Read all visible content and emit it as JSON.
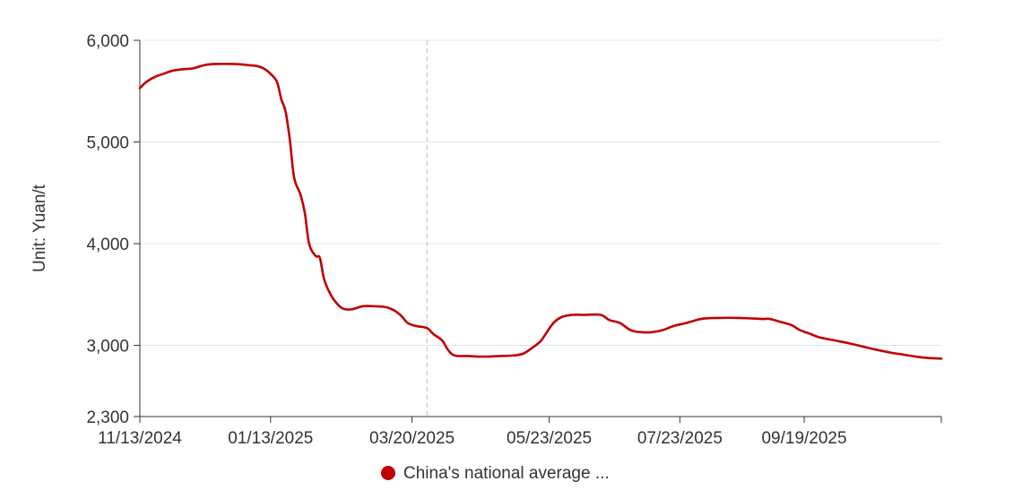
{
  "chart_data": {
    "type": "line",
    "ylabel": "Unit: Yuan/t",
    "ylim": [
      2300,
      6000
    ],
    "yticks": [
      {
        "value": 2300,
        "label": "2,300"
      },
      {
        "value": 3000,
        "label": "3,000"
      },
      {
        "value": 4000,
        "label": "4,000"
      },
      {
        "value": 5000,
        "label": "5,000"
      },
      {
        "value": 6000,
        "label": "6,000"
      }
    ],
    "xlim": [
      "2024-11-13",
      "2025-11-22"
    ],
    "xticks": [
      {
        "value": "2024-11-13",
        "label": "11/13/2024"
      },
      {
        "value": "2025-01-13",
        "label": "01/13/2025"
      },
      {
        "value": "2025-03-20",
        "label": "03/20/2025"
      },
      {
        "value": "2025-05-23",
        "label": "05/23/2025"
      },
      {
        "value": "2025-07-23",
        "label": "07/23/2025"
      },
      {
        "value": "2025-09-19",
        "label": "09/19/2025"
      }
    ],
    "grid": "horizontal",
    "legend_position": "bottom-center",
    "hover_marker": "2025-03-27",
    "colors": {
      "series": "#c00000",
      "grid": "#e0e4ee",
      "axis": "#333333",
      "hover": "#b8bcc6"
    },
    "series": [
      {
        "name": "China's national average ...",
        "points": [
          [
            "2024-11-13",
            5530
          ],
          [
            "2024-11-16",
            5590
          ],
          [
            "2024-11-20",
            5640
          ],
          [
            "2024-11-24",
            5670
          ],
          [
            "2024-11-28",
            5700
          ],
          [
            "2024-12-03",
            5715
          ],
          [
            "2024-12-08",
            5725
          ],
          [
            "2024-12-12",
            5750
          ],
          [
            "2024-12-16",
            5765
          ],
          [
            "2024-12-22",
            5768
          ],
          [
            "2024-12-29",
            5765
          ],
          [
            "2025-01-03",
            5755
          ],
          [
            "2025-01-07",
            5745
          ],
          [
            "2025-01-10",
            5720
          ],
          [
            "2025-01-13",
            5670
          ],
          [
            "2025-01-16",
            5590
          ],
          [
            "2025-01-18",
            5420
          ],
          [
            "2025-01-20",
            5300
          ],
          [
            "2025-01-22",
            5020
          ],
          [
            "2025-01-24",
            4650
          ],
          [
            "2025-01-27",
            4480
          ],
          [
            "2025-01-29",
            4300
          ],
          [
            "2025-01-31",
            4000
          ],
          [
            "2025-02-03",
            3880
          ],
          [
            "2025-02-05",
            3860
          ],
          [
            "2025-02-07",
            3650
          ],
          [
            "2025-02-10",
            3500
          ],
          [
            "2025-02-13",
            3410
          ],
          [
            "2025-02-16",
            3360
          ],
          [
            "2025-02-20",
            3355
          ],
          [
            "2025-02-25",
            3385
          ],
          [
            "2025-03-02",
            3385
          ],
          [
            "2025-03-08",
            3375
          ],
          [
            "2025-03-12",
            3340
          ],
          [
            "2025-03-15",
            3290
          ],
          [
            "2025-03-18",
            3220
          ],
          [
            "2025-03-22",
            3190
          ],
          [
            "2025-03-27",
            3170
          ],
          [
            "2025-03-30",
            3110
          ],
          [
            "2025-04-03",
            3050
          ],
          [
            "2025-04-06",
            2950
          ],
          [
            "2025-04-09",
            2900
          ],
          [
            "2025-04-15",
            2895
          ],
          [
            "2025-04-20",
            2890
          ],
          [
            "2025-04-25",
            2890
          ],
          [
            "2025-04-30",
            2895
          ],
          [
            "2025-05-06",
            2900
          ],
          [
            "2025-05-11",
            2920
          ],
          [
            "2025-05-16",
            2990
          ],
          [
            "2025-05-19",
            3040
          ],
          [
            "2025-05-21",
            3100
          ],
          [
            "2025-05-25",
            3220
          ],
          [
            "2025-05-29",
            3280
          ],
          [
            "2025-06-03",
            3300
          ],
          [
            "2025-06-08",
            3300
          ],
          [
            "2025-06-16",
            3300
          ],
          [
            "2025-06-20",
            3250
          ],
          [
            "2025-06-25",
            3220
          ],
          [
            "2025-06-30",
            3150
          ],
          [
            "2025-07-05",
            3130
          ],
          [
            "2025-07-10",
            3130
          ],
          [
            "2025-07-15",
            3150
          ],
          [
            "2025-07-20",
            3190
          ],
          [
            "2025-07-26",
            3220
          ],
          [
            "2025-08-02",
            3260
          ],
          [
            "2025-08-10",
            3270
          ],
          [
            "2025-08-20",
            3270
          ],
          [
            "2025-08-30",
            3260
          ],
          [
            "2025-09-03",
            3260
          ],
          [
            "2025-09-08",
            3230
          ],
          [
            "2025-09-13",
            3200
          ],
          [
            "2025-09-17",
            3150
          ],
          [
            "2025-09-21",
            3120
          ],
          [
            "2025-09-26",
            3080
          ],
          [
            "2025-10-03",
            3050
          ],
          [
            "2025-10-10",
            3020
          ],
          [
            "2025-10-16",
            2990
          ],
          [
            "2025-10-22",
            2960
          ],
          [
            "2025-10-29",
            2930
          ],
          [
            "2025-11-04",
            2910
          ],
          [
            "2025-11-10",
            2890
          ],
          [
            "2025-11-16",
            2875
          ],
          [
            "2025-11-22",
            2870
          ]
        ]
      }
    ]
  }
}
